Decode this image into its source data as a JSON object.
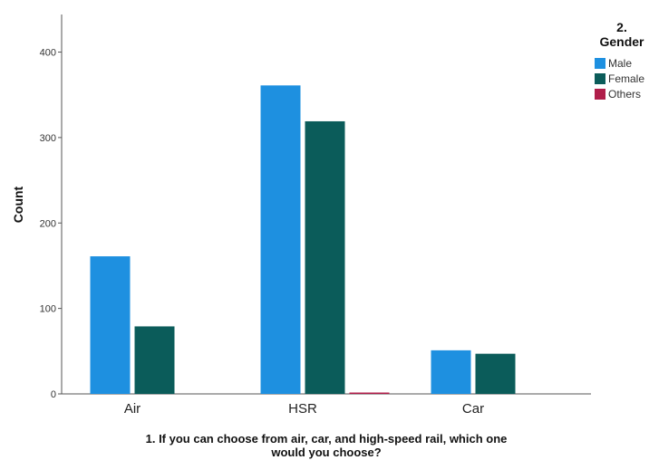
{
  "chart_data": {
    "type": "bar",
    "categories": [
      "Air",
      "HSR",
      "Car"
    ],
    "series": [
      {
        "name": "Male",
        "values": [
          161,
          361,
          51
        ],
        "color": "#1e90e0"
      },
      {
        "name": "Female",
        "values": [
          79,
          319,
          47
        ],
        "color": "#0b5c5a"
      },
      {
        "name": "Others",
        "values": [
          0,
          1,
          0
        ],
        "color": "#b01e4a"
      }
    ],
    "title": "",
    "xlabel_lines": [
      "1. If you can choose from air, car, and high-speed rail, which one",
      "would you choose?"
    ],
    "ylabel": "Count",
    "ylim": [
      0,
      450
    ],
    "yticks": [
      0,
      100,
      200,
      300,
      400
    ],
    "legend": {
      "title_lines": [
        "2.",
        "Gender"
      ],
      "placement": "top-right"
    },
    "grid": false
  }
}
